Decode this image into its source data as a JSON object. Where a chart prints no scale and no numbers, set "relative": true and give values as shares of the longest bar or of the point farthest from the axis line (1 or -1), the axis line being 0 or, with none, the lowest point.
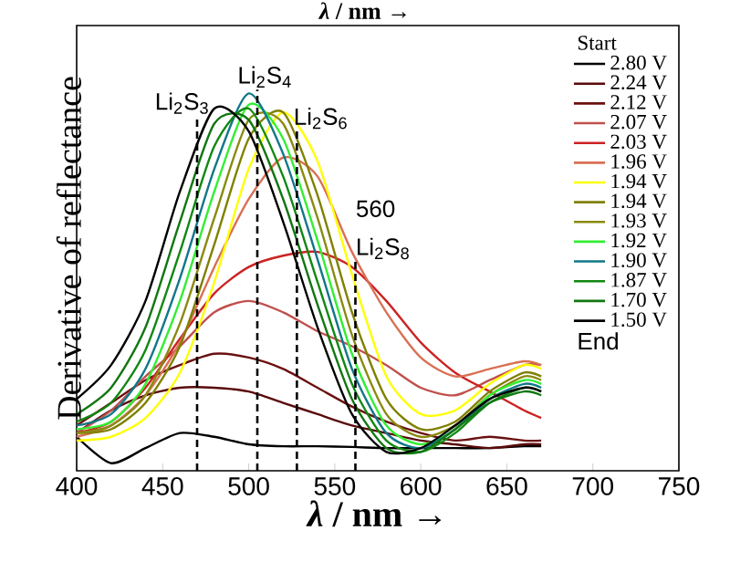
{
  "chart_data": {
    "type": "line",
    "relative": true,
    "xlabel": "*λ* / nm →",
    "ylabel": "Derivative of reflectance",
    "xlim": [
      400,
      750
    ],
    "xticks": [
      400,
      450,
      500,
      550,
      600,
      650,
      700,
      750
    ],
    "x": [
      400,
      420,
      440,
      460,
      480,
      500,
      520,
      540,
      560,
      580,
      600,
      620,
      640,
      660,
      670
    ],
    "legend": "top right",
    "legend_title": "Start",
    "marker": "none",
    "line_style": "solid",
    "series": [
      {
        "name": "2.80 V",
        "color": "#000000",
        "values": [
          0.09,
          0.02,
          0.06,
          0.1,
          0.09,
          0.07,
          0.065,
          0.065,
          0.063,
          0.06,
          0.06,
          0.06,
          0.06,
          0.065,
          0.065
        ]
      },
      {
        "name": "2.24 V",
        "color": "#5a0a0a",
        "values": [
          0.1,
          0.16,
          0.2,
          0.22,
          0.22,
          0.21,
          0.18,
          0.15,
          0.12,
          0.1,
          0.08,
          0.07,
          0.06,
          0.07,
          0.07
        ]
      },
      {
        "name": "2.12 V",
        "color": "#6b1010",
        "values": [
          0.12,
          0.18,
          0.24,
          0.28,
          0.31,
          0.3,
          0.27,
          0.22,
          0.17,
          0.13,
          0.1,
          0.08,
          0.09,
          0.08,
          0.08
        ]
      },
      {
        "name": "2.07 V",
        "color": "#c0504d",
        "values": [
          0.1,
          0.16,
          0.25,
          0.33,
          0.42,
          0.45,
          0.42,
          0.37,
          0.33,
          0.28,
          0.22,
          0.2,
          0.24,
          0.28,
          0.28
        ]
      },
      {
        "name": "2.03 V",
        "color": "#cc2222",
        "values": [
          0.1,
          0.13,
          0.22,
          0.35,
          0.47,
          0.54,
          0.57,
          0.58,
          0.54,
          0.45,
          0.34,
          0.26,
          0.21,
          0.16,
          0.14
        ]
      },
      {
        "name": "1.96 V",
        "color": "#d97055",
        "values": [
          0.09,
          0.12,
          0.2,
          0.34,
          0.54,
          0.72,
          0.83,
          0.78,
          0.58,
          0.42,
          0.3,
          0.25,
          0.27,
          0.29,
          0.28
        ]
      },
      {
        "name": "1.94 V",
        "color": "#ffff00",
        "values": [
          0.08,
          0.09,
          0.14,
          0.26,
          0.5,
          0.8,
          0.95,
          0.82,
          0.52,
          0.25,
          0.15,
          0.16,
          0.23,
          0.28,
          0.27
        ]
      },
      {
        "name": "1.94 V",
        "color": "#808000",
        "values": [
          0.1,
          0.11,
          0.18,
          0.33,
          0.6,
          0.88,
          0.95,
          0.73,
          0.42,
          0.19,
          0.11,
          0.13,
          0.21,
          0.26,
          0.25
        ]
      },
      {
        "name": "1.93 V",
        "color": "#8a8a10",
        "values": [
          0.1,
          0.12,
          0.2,
          0.39,
          0.67,
          0.93,
          0.92,
          0.67,
          0.36,
          0.15,
          0.09,
          0.12,
          0.2,
          0.25,
          0.24
        ]
      },
      {
        "name": "1.92 V",
        "color": "#33ee33",
        "values": [
          0.11,
          0.13,
          0.23,
          0.45,
          0.74,
          0.97,
          0.88,
          0.61,
          0.31,
          0.12,
          0.07,
          0.11,
          0.2,
          0.24,
          0.23
        ]
      },
      {
        "name": "1.90 V",
        "color": "#117788",
        "values": [
          0.12,
          0.15,
          0.27,
          0.51,
          0.8,
          1,
          0.84,
          0.56,
          0.27,
          0.1,
          0.06,
          0.11,
          0.19,
          0.23,
          0.22
        ]
      },
      {
        "name": "1.87 V",
        "color": "#118811",
        "values": [
          0.13,
          0.18,
          0.32,
          0.58,
          0.86,
          0.96,
          0.78,
          0.5,
          0.23,
          0.08,
          0.05,
          0.1,
          0.18,
          0.22,
          0.21
        ]
      },
      {
        "name": "1.70 V",
        "color": "#117711",
        "values": [
          0.15,
          0.22,
          0.38,
          0.66,
          0.92,
          0.93,
          0.72,
          0.44,
          0.19,
          0.06,
          0.05,
          0.11,
          0.18,
          0.21,
          0.2
        ]
      },
      {
        "name": "1.50 V",
        "color": "#000000",
        "values": [
          0.19,
          0.28,
          0.45,
          0.74,
          0.96,
          0.9,
          0.66,
          0.38,
          0.15,
          0.05,
          0.06,
          0.12,
          0.19,
          0.22,
          0.21
        ]
      }
    ],
    "ref_lines": [
      {
        "axis": "x",
        "value": 470,
        "label": "Li$_{2}$S$_{3}$",
        "line_style": "dashed",
        "color": "#000000"
      },
      {
        "axis": "x",
        "value": 505,
        "label": "Li$_{2}$S$_{4}$",
        "line_style": "dashed",
        "color": "#000000"
      },
      {
        "axis": "x",
        "value": 528,
        "label": "Li$_{2}$S$_{6}$",
        "line_style": "dashed",
        "color": "#000000"
      },
      {
        "axis": "x",
        "value": 562,
        "label": "Li$_{2}$S$_{8}$",
        "line_style": "dashed",
        "color": "#000000"
      }
    ],
    "annotations": [
      "*λ* / nm →",
      "560",
      "End"
    ]
  }
}
